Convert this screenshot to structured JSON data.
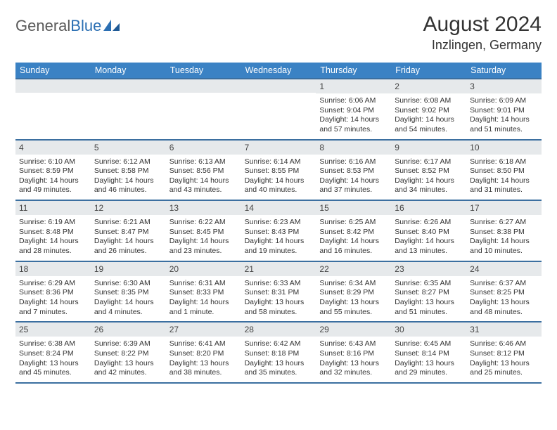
{
  "brand": {
    "part1": "General",
    "part2": "Blue"
  },
  "title": "August 2024",
  "location": "Inzlingen, Germany",
  "colors": {
    "header_bg": "#3b82c4",
    "header_text": "#ffffff",
    "week_border": "#3b6fa0",
    "daynum_bg": "#e6e9eb",
    "text": "#333333",
    "logo_gray": "#5a5a5a",
    "logo_blue": "#2b6fb3",
    "page_bg": "#ffffff"
  },
  "typography": {
    "title_fontsize": 30,
    "location_fontsize": 18,
    "dow_fontsize": 12.5,
    "daynum_fontsize": 12,
    "detail_fontsize": 10.5
  },
  "layout": {
    "columns": 7,
    "rows": 5
  },
  "days_of_week": [
    "Sunday",
    "Monday",
    "Tuesday",
    "Wednesday",
    "Thursday",
    "Friday",
    "Saturday"
  ],
  "weeks": [
    [
      {
        "n": "",
        "sunrise": "",
        "sunset": "",
        "daylight": ""
      },
      {
        "n": "",
        "sunrise": "",
        "sunset": "",
        "daylight": ""
      },
      {
        "n": "",
        "sunrise": "",
        "sunset": "",
        "daylight": ""
      },
      {
        "n": "",
        "sunrise": "",
        "sunset": "",
        "daylight": ""
      },
      {
        "n": "1",
        "sunrise": "Sunrise: 6:06 AM",
        "sunset": "Sunset: 9:04 PM",
        "daylight": "Daylight: 14 hours and 57 minutes."
      },
      {
        "n": "2",
        "sunrise": "Sunrise: 6:08 AM",
        "sunset": "Sunset: 9:02 PM",
        "daylight": "Daylight: 14 hours and 54 minutes."
      },
      {
        "n": "3",
        "sunrise": "Sunrise: 6:09 AM",
        "sunset": "Sunset: 9:01 PM",
        "daylight": "Daylight: 14 hours and 51 minutes."
      }
    ],
    [
      {
        "n": "4",
        "sunrise": "Sunrise: 6:10 AM",
        "sunset": "Sunset: 8:59 PM",
        "daylight": "Daylight: 14 hours and 49 minutes."
      },
      {
        "n": "5",
        "sunrise": "Sunrise: 6:12 AM",
        "sunset": "Sunset: 8:58 PM",
        "daylight": "Daylight: 14 hours and 46 minutes."
      },
      {
        "n": "6",
        "sunrise": "Sunrise: 6:13 AM",
        "sunset": "Sunset: 8:56 PM",
        "daylight": "Daylight: 14 hours and 43 minutes."
      },
      {
        "n": "7",
        "sunrise": "Sunrise: 6:14 AM",
        "sunset": "Sunset: 8:55 PM",
        "daylight": "Daylight: 14 hours and 40 minutes."
      },
      {
        "n": "8",
        "sunrise": "Sunrise: 6:16 AM",
        "sunset": "Sunset: 8:53 PM",
        "daylight": "Daylight: 14 hours and 37 minutes."
      },
      {
        "n": "9",
        "sunrise": "Sunrise: 6:17 AM",
        "sunset": "Sunset: 8:52 PM",
        "daylight": "Daylight: 14 hours and 34 minutes."
      },
      {
        "n": "10",
        "sunrise": "Sunrise: 6:18 AM",
        "sunset": "Sunset: 8:50 PM",
        "daylight": "Daylight: 14 hours and 31 minutes."
      }
    ],
    [
      {
        "n": "11",
        "sunrise": "Sunrise: 6:19 AM",
        "sunset": "Sunset: 8:48 PM",
        "daylight": "Daylight: 14 hours and 28 minutes."
      },
      {
        "n": "12",
        "sunrise": "Sunrise: 6:21 AM",
        "sunset": "Sunset: 8:47 PM",
        "daylight": "Daylight: 14 hours and 26 minutes."
      },
      {
        "n": "13",
        "sunrise": "Sunrise: 6:22 AM",
        "sunset": "Sunset: 8:45 PM",
        "daylight": "Daylight: 14 hours and 23 minutes."
      },
      {
        "n": "14",
        "sunrise": "Sunrise: 6:23 AM",
        "sunset": "Sunset: 8:43 PM",
        "daylight": "Daylight: 14 hours and 19 minutes."
      },
      {
        "n": "15",
        "sunrise": "Sunrise: 6:25 AM",
        "sunset": "Sunset: 8:42 PM",
        "daylight": "Daylight: 14 hours and 16 minutes."
      },
      {
        "n": "16",
        "sunrise": "Sunrise: 6:26 AM",
        "sunset": "Sunset: 8:40 PM",
        "daylight": "Daylight: 14 hours and 13 minutes."
      },
      {
        "n": "17",
        "sunrise": "Sunrise: 6:27 AM",
        "sunset": "Sunset: 8:38 PM",
        "daylight": "Daylight: 14 hours and 10 minutes."
      }
    ],
    [
      {
        "n": "18",
        "sunrise": "Sunrise: 6:29 AM",
        "sunset": "Sunset: 8:36 PM",
        "daylight": "Daylight: 14 hours and 7 minutes."
      },
      {
        "n": "19",
        "sunrise": "Sunrise: 6:30 AM",
        "sunset": "Sunset: 8:35 PM",
        "daylight": "Daylight: 14 hours and 4 minutes."
      },
      {
        "n": "20",
        "sunrise": "Sunrise: 6:31 AM",
        "sunset": "Sunset: 8:33 PM",
        "daylight": "Daylight: 14 hours and 1 minute."
      },
      {
        "n": "21",
        "sunrise": "Sunrise: 6:33 AM",
        "sunset": "Sunset: 8:31 PM",
        "daylight": "Daylight: 13 hours and 58 minutes."
      },
      {
        "n": "22",
        "sunrise": "Sunrise: 6:34 AM",
        "sunset": "Sunset: 8:29 PM",
        "daylight": "Daylight: 13 hours and 55 minutes."
      },
      {
        "n": "23",
        "sunrise": "Sunrise: 6:35 AM",
        "sunset": "Sunset: 8:27 PM",
        "daylight": "Daylight: 13 hours and 51 minutes."
      },
      {
        "n": "24",
        "sunrise": "Sunrise: 6:37 AM",
        "sunset": "Sunset: 8:25 PM",
        "daylight": "Daylight: 13 hours and 48 minutes."
      }
    ],
    [
      {
        "n": "25",
        "sunrise": "Sunrise: 6:38 AM",
        "sunset": "Sunset: 8:24 PM",
        "daylight": "Daylight: 13 hours and 45 minutes."
      },
      {
        "n": "26",
        "sunrise": "Sunrise: 6:39 AM",
        "sunset": "Sunset: 8:22 PM",
        "daylight": "Daylight: 13 hours and 42 minutes."
      },
      {
        "n": "27",
        "sunrise": "Sunrise: 6:41 AM",
        "sunset": "Sunset: 8:20 PM",
        "daylight": "Daylight: 13 hours and 38 minutes."
      },
      {
        "n": "28",
        "sunrise": "Sunrise: 6:42 AM",
        "sunset": "Sunset: 8:18 PM",
        "daylight": "Daylight: 13 hours and 35 minutes."
      },
      {
        "n": "29",
        "sunrise": "Sunrise: 6:43 AM",
        "sunset": "Sunset: 8:16 PM",
        "daylight": "Daylight: 13 hours and 32 minutes."
      },
      {
        "n": "30",
        "sunrise": "Sunrise: 6:45 AM",
        "sunset": "Sunset: 8:14 PM",
        "daylight": "Daylight: 13 hours and 29 minutes."
      },
      {
        "n": "31",
        "sunrise": "Sunrise: 6:46 AM",
        "sunset": "Sunset: 8:12 PM",
        "daylight": "Daylight: 13 hours and 25 minutes."
      }
    ]
  ]
}
